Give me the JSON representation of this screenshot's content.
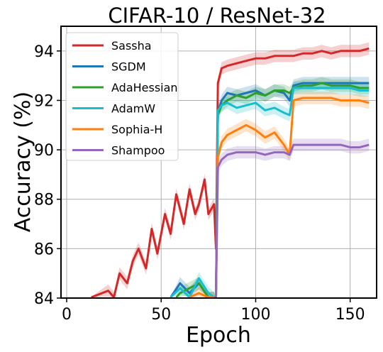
{
  "chart_data": {
    "type": "line",
    "title": "CIFAR-10 / ResNet-32",
    "xlabel": "Epoch",
    "ylabel": "Accuracy (%)",
    "xlim": [
      -3,
      164
    ],
    "ylim": [
      84,
      95
    ],
    "xticks": [
      0,
      50,
      100,
      150
    ],
    "yticks": [
      84,
      86,
      88,
      90,
      92,
      94
    ],
    "grid": true,
    "legend_position": "top-left",
    "series": [
      {
        "name": "Sassha",
        "color": "#d62728",
        "x": [
          0,
          10,
          13,
          22,
          25,
          28,
          32,
          35,
          38,
          42,
          45,
          48,
          52,
          55,
          58,
          62,
          65,
          68,
          70,
          73,
          75,
          78,
          79,
          80,
          82,
          85,
          90,
          95,
          100,
          105,
          110,
          115,
          120,
          125,
          130,
          135,
          140,
          145,
          150,
          155,
          160
        ],
        "y": [
          null,
          null,
          83.8,
          84.3,
          84.0,
          85.0,
          84.6,
          85.5,
          86.0,
          85.2,
          86.8,
          85.8,
          87.4,
          86.6,
          88.2,
          87.0,
          88.4,
          87.4,
          87.8,
          88.8,
          87.4,
          87.8,
          86.0,
          92.7,
          93.3,
          93.4,
          93.5,
          93.6,
          93.7,
          93.7,
          93.8,
          93.8,
          93.8,
          93.9,
          93.9,
          94.0,
          93.9,
          94.0,
          94.0,
          94.0,
          94.1
        ]
      },
      {
        "name": "SGDM",
        "color": "#1f77b4",
        "x": [
          50,
          55,
          60,
          65,
          70,
          75,
          78,
          79,
          80,
          82,
          85,
          90,
          95,
          100,
          105,
          110,
          115,
          118,
          120,
          125,
          130,
          135,
          140,
          145,
          150,
          155,
          160
        ],
        "y": [
          null,
          83.6,
          84.6,
          84.2,
          84.6,
          84.0,
          84.0,
          83.5,
          91.5,
          92.0,
          92.3,
          92.2,
          92.3,
          92.4,
          92.2,
          92.4,
          92.3,
          92.0,
          92.6,
          92.7,
          92.7,
          92.7,
          92.7,
          92.7,
          92.7,
          92.7,
          92.7
        ]
      },
      {
        "name": "AdaHessian",
        "color": "#2ca02c",
        "x": [
          55,
          58,
          60,
          65,
          70,
          75,
          78,
          79,
          80,
          82,
          85,
          90,
          95,
          100,
          105,
          110,
          115,
          118,
          120,
          125,
          130,
          135,
          140,
          145,
          150,
          155,
          160
        ],
        "y": [
          null,
          83.6,
          84.2,
          84.4,
          84.6,
          84.0,
          84.0,
          83.5,
          91.4,
          91.8,
          92.0,
          92.2,
          92.1,
          92.3,
          92.2,
          92.4,
          92.4,
          92.3,
          92.5,
          92.6,
          92.6,
          92.7,
          92.6,
          92.6,
          92.6,
          92.5,
          92.5
        ]
      },
      {
        "name": "AdamW",
        "color": "#17becf",
        "x": [
          50,
          55,
          60,
          65,
          70,
          75,
          78,
          79,
          80,
          82,
          85,
          90,
          95,
          100,
          105,
          110,
          115,
          118,
          120,
          125,
          130,
          135,
          140,
          145,
          150,
          155,
          160
        ],
        "y": [
          null,
          83.8,
          84.4,
          84.0,
          84.8,
          84.2,
          84.0,
          83.5,
          91.6,
          91.8,
          91.9,
          91.7,
          91.8,
          91.9,
          91.6,
          91.7,
          91.5,
          91.4,
          92.5,
          92.5,
          92.5,
          92.5,
          92.5,
          92.5,
          92.5,
          92.4,
          92.4
        ]
      },
      {
        "name": "Sophia-H",
        "color": "#ff7f0e",
        "x": [
          60,
          65,
          70,
          75,
          78,
          79,
          80,
          82,
          85,
          90,
          95,
          100,
          105,
          110,
          115,
          118,
          120,
          125,
          130,
          135,
          140,
          145,
          150,
          155,
          160
        ],
        "y": [
          null,
          83.8,
          84.2,
          84.0,
          84.0,
          83.5,
          89.7,
          90.3,
          90.6,
          90.8,
          91.0,
          90.8,
          90.5,
          90.7,
          90.2,
          89.8,
          92.0,
          92.1,
          92.1,
          92.1,
          92.1,
          92.0,
          92.0,
          92.0,
          91.9
        ]
      },
      {
        "name": "Shampoo",
        "color": "#9467bd",
        "x": [
          78,
          79,
          80,
          82,
          85,
          90,
          95,
          100,
          105,
          110,
          115,
          118,
          120,
          125,
          130,
          135,
          140,
          145,
          150,
          155,
          160
        ],
        "y": [
          83.8,
          83.5,
          89.3,
          89.6,
          89.8,
          89.9,
          89.9,
          89.9,
          89.8,
          89.9,
          89.9,
          89.8,
          90.2,
          90.2,
          90.2,
          90.2,
          90.2,
          90.2,
          90.1,
          90.1,
          90.2
        ]
      }
    ]
  }
}
